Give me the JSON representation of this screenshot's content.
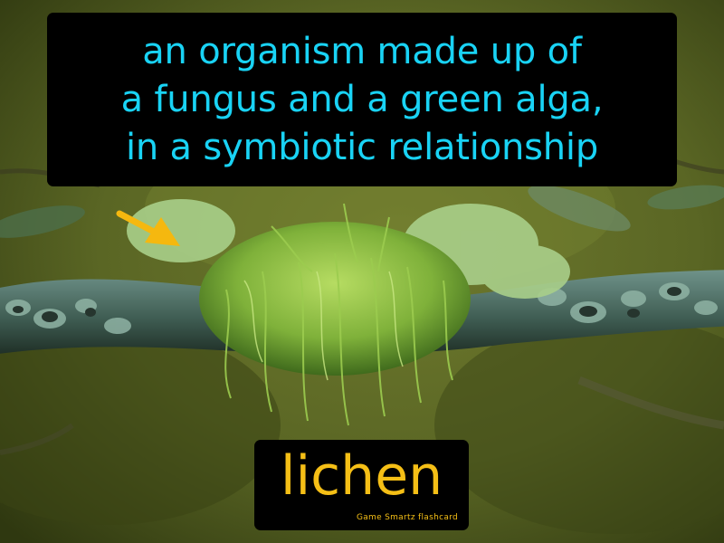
{
  "flashcard": {
    "definition": {
      "line1": "an organism made up of",
      "line2": "a fungus and a green alga,",
      "line3": "in a symbiotic relationship"
    },
    "term": "lichen",
    "brand": "Game  Smartz  flashcard"
  },
  "colors": {
    "definition_text": "#19d3f5",
    "term_text": "#f5bf16",
    "arrow": "#f5b80f",
    "panel_background": "#000000"
  },
  "photo": {
    "subject": "lichen-covered-branch"
  }
}
